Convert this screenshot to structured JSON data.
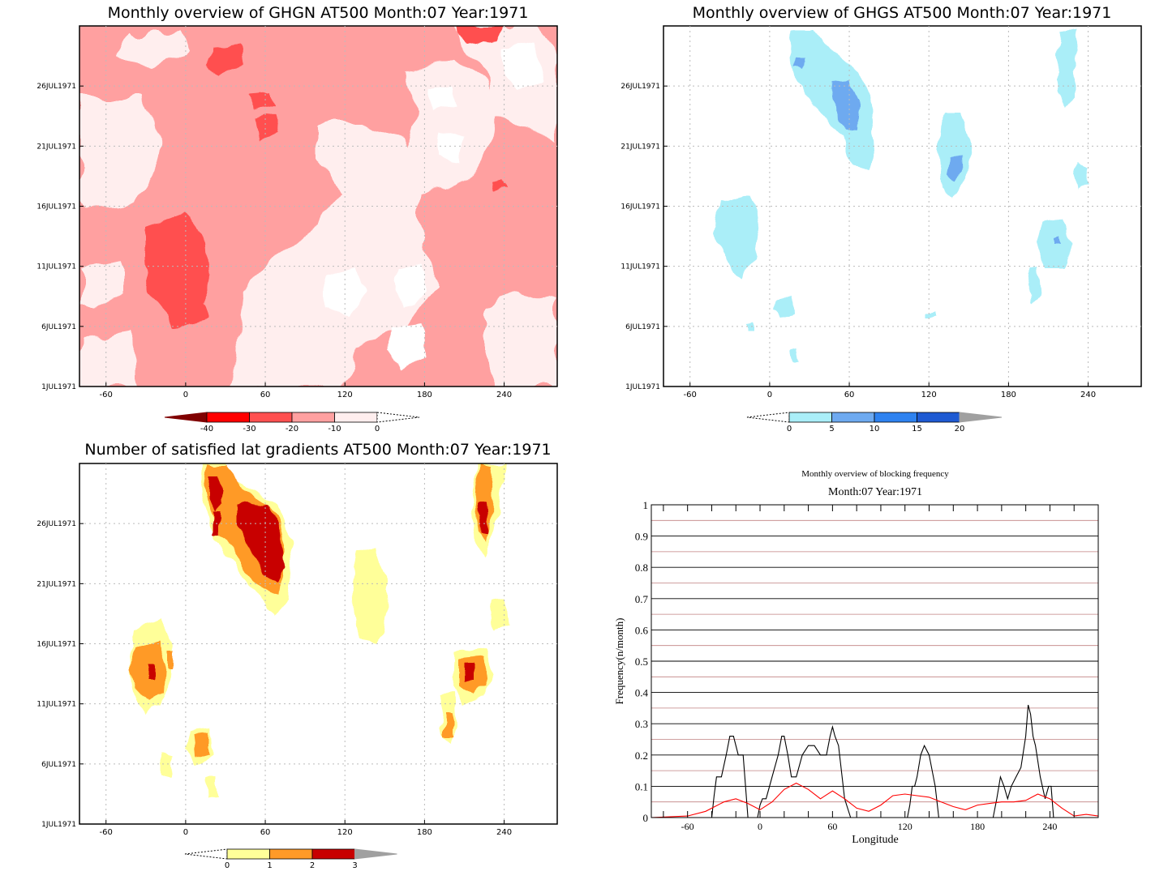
{
  "chart_data": [
    {
      "type": "heatmap",
      "title": "Monthly overview of GHGN AT500 Month:07 Year:1971",
      "x_ticks": [
        "-60",
        "0",
        "60",
        "120",
        "180",
        "240"
      ],
      "x_tick_values": [
        -60,
        0,
        60,
        120,
        180,
        240
      ],
      "xlim": [
        -80,
        280
      ],
      "y_ticks": [
        "1JUL1971",
        "6JUL1971",
        "11JUL1971",
        "16JUL1971",
        "21JUL1971",
        "26JUL1971"
      ],
      "y_tick_values": [
        1,
        6,
        11,
        16,
        21,
        26
      ],
      "ylim": [
        1,
        31
      ],
      "colorbar": {
        "labels": [
          "-40",
          "-30",
          "-20",
          "-10",
          "0"
        ],
        "levels": [
          -40,
          -30,
          -20,
          -10,
          0
        ],
        "colors": [
          "#ff0000",
          "#ff5050",
          "#ffa0a0",
          "#ffeeee"
        ],
        "low_end_color": "#800000",
        "high_end_color": "#ffffff"
      }
    },
    {
      "type": "heatmap",
      "title": "Monthly overview of GHGS AT500 Month:07 Year:1971",
      "x_ticks": [
        "-60",
        "0",
        "60",
        "120",
        "180",
        "240"
      ],
      "x_tick_values": [
        -60,
        0,
        60,
        120,
        180,
        240
      ],
      "xlim": [
        -80,
        280
      ],
      "y_ticks": [
        "1JUL1971",
        "6JUL1971",
        "11JUL1971",
        "16JUL1971",
        "21JUL1971",
        "26JUL1971"
      ],
      "y_tick_values": [
        1,
        6,
        11,
        16,
        21,
        26
      ],
      "ylim": [
        1,
        31
      ],
      "colorbar": {
        "labels": [
          "0",
          "5",
          "10",
          "15",
          "20"
        ],
        "levels": [
          0,
          5,
          10,
          15,
          20
        ],
        "colors": [
          "#aaeef8",
          "#6eaaf0",
          "#2e82f0",
          "#1e5ad2"
        ],
        "low_end_color": "#ffffff",
        "high_end_color": "#a0a0a0"
      }
    },
    {
      "type": "heatmap",
      "title": "Number of satisfied lat gradients AT500 Month:07 Year:1971",
      "x_ticks": [
        "-60",
        "0",
        "60",
        "120",
        "180",
        "240"
      ],
      "x_tick_values": [
        -60,
        0,
        60,
        120,
        180,
        240
      ],
      "xlim": [
        -80,
        280
      ],
      "y_ticks": [
        "1JUL1971",
        "6JUL1971",
        "11JUL1971",
        "16JUL1971",
        "21JUL1971",
        "26JUL1971"
      ],
      "y_tick_values": [
        1,
        6,
        11,
        16,
        21,
        26
      ],
      "ylim": [
        1,
        31
      ],
      "colorbar": {
        "labels": [
          "0",
          "1",
          "2",
          "3"
        ],
        "levels": [
          0,
          1,
          2,
          3
        ],
        "colors": [
          "#ffff99",
          "#ff9a28",
          "#c80000"
        ],
        "low_end_color": "#ffffff",
        "high_end_color": "#a0a0a0"
      }
    },
    {
      "type": "line",
      "title": "Monthly overview of blocking frequency",
      "subtitle": "Month:07 Year:1971",
      "xlabel": "Longitude",
      "ylabel": "Frequency(n/month)",
      "xlim": [
        -90,
        280
      ],
      "ylim": [
        0,
        1
      ],
      "x_ticks": [
        "-60",
        "0",
        "60",
        "120",
        "180",
        "240"
      ],
      "x_tick_values": [
        -60,
        0,
        60,
        120,
        180,
        240
      ],
      "y_ticks": [
        "0",
        "0.1",
        "0.2",
        "0.3",
        "0.4",
        "0.5",
        "0.6",
        "0.7",
        "0.8",
        "0.9",
        "1"
      ],
      "y_tick_values": [
        0,
        0.1,
        0.2,
        0.3,
        0.4,
        0.5,
        0.6,
        0.7,
        0.8,
        0.9,
        1
      ],
      "grid": true,
      "series": [
        {
          "color": "#000000",
          "x": [
            -90,
            -40,
            -38,
            -36,
            -34,
            -32,
            -28,
            -25,
            -22,
            -18,
            -14,
            -10,
            -5,
            -2,
            0,
            2,
            5,
            10,
            15,
            18,
            20,
            23,
            26,
            30,
            35,
            40,
            42,
            45,
            50,
            55,
            58,
            60,
            62,
            65,
            70,
            75,
            80,
            122,
            124,
            126,
            128,
            130,
            133,
            136,
            140,
            145,
            148,
            152,
            193,
            196,
            199,
            202,
            205,
            208,
            212,
            216,
            220,
            222,
            224,
            226,
            228,
            232,
            236,
            239,
            241,
            243,
            245,
            280
          ],
          "y": [
            0,
            0,
            0.07,
            0.13,
            0.13,
            0.13,
            0.2,
            0.26,
            0.26,
            0.2,
            0.2,
            0,
            0,
            0,
            0.04,
            0.06,
            0.06,
            0.13,
            0.2,
            0.26,
            0.26,
            0.2,
            0.13,
            0.13,
            0.2,
            0.23,
            0.23,
            0.23,
            0.2,
            0.2,
            0.26,
            0.29,
            0.26,
            0.23,
            0.06,
            0,
            0,
            0,
            0.04,
            0.1,
            0.1,
            0.13,
            0.2,
            0.23,
            0.2,
            0.1,
            0,
            0,
            0,
            0.06,
            0.13,
            0.1,
            0.06,
            0.1,
            0.13,
            0.16,
            0.26,
            0.36,
            0.33,
            0.26,
            0.23,
            0.13,
            0.06,
            0.1,
            0.1,
            0,
            0,
            0
          ]
        },
        {
          "color": "#ff0000",
          "x": [
            -90,
            -60,
            -45,
            -30,
            -20,
            -10,
            0,
            10,
            20,
            30,
            40,
            50,
            60,
            70,
            80,
            90,
            100,
            110,
            120,
            130,
            140,
            150,
            160,
            170,
            180,
            190,
            200,
            210,
            220,
            230,
            240,
            250,
            260,
            270,
            280
          ],
          "y": [
            0,
            0.005,
            0.02,
            0.05,
            0.06,
            0.045,
            0.025,
            0.05,
            0.09,
            0.11,
            0.09,
            0.06,
            0.085,
            0.06,
            0.03,
            0.02,
            0.04,
            0.07,
            0.075,
            0.07,
            0.065,
            0.05,
            0.035,
            0.025,
            0.04,
            0.045,
            0.05,
            0.05,
            0.055,
            0.075,
            0.06,
            0.03,
            0.005,
            0.01,
            0.005
          ]
        }
      ],
      "hlines_red": [
        0.05,
        0.15,
        0.25,
        0.35,
        0.45,
        0.55,
        0.65,
        0.75,
        0.85,
        0.95
      ]
    }
  ]
}
